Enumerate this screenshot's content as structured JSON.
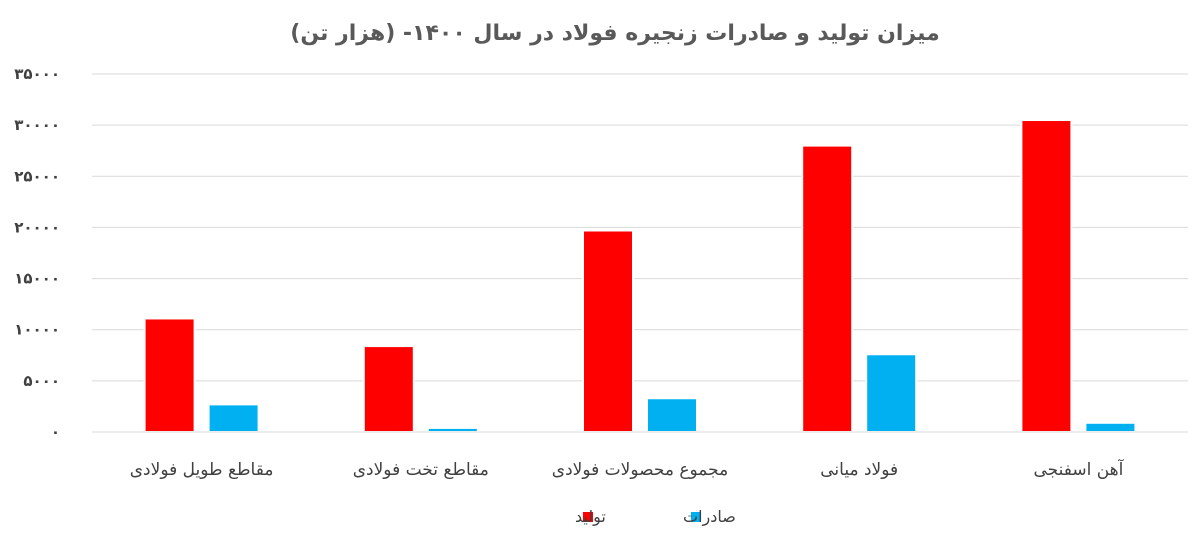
{
  "chart_data": {
    "type": "bar",
    "title": "میزان تولید و صادرات زنجیره فولاد در سال ۱۴۰۰- (هزار تن)",
    "categories": [
      "آهن اسفنجی",
      "فولاد میانی",
      "مجموع محصولات فولادی",
      "مقاطع تخت فولادی",
      "مقاطع طویل فولادی"
    ],
    "series": [
      {
        "name": "تولید",
        "color": "#ff0000",
        "values": [
          30500,
          28000,
          19700,
          8400,
          11100
        ]
      },
      {
        "name": "صادرات",
        "color": "#00b0f0",
        "values": [
          900,
          7600,
          3300,
          400,
          2700
        ]
      }
    ],
    "ylim": [
      0,
      35000
    ],
    "yticks": [
      0,
      5000,
      10000,
      15000,
      20000,
      25000,
      30000,
      35000
    ],
    "ytick_labels": [
      "۰",
      "۵۰۰۰",
      "۱۰۰۰۰",
      "۱۵۰۰۰",
      "۲۰۰۰۰",
      "۲۵۰۰۰",
      "۳۰۰۰۰",
      "۳۵۰۰۰"
    ],
    "grid": true,
    "legend_position": "bottom",
    "xlabel": "",
    "ylabel": ""
  }
}
